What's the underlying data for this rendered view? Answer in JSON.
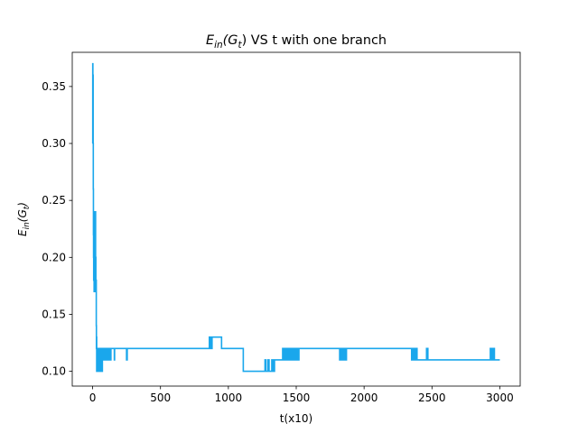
{
  "chart_data": {
    "type": "line",
    "title": {
      "main": "E",
      "sub1": "in",
      "mid": "(G",
      "sub2": "t",
      "close": ")",
      "rest": " VS t with one branch"
    },
    "xlabel": "t(x10)",
    "ylabel": {
      "main": "E",
      "sub1": "in",
      "mid": "(G",
      "sub2": "t",
      "close": ")"
    },
    "xlim": [
      -150,
      3150
    ],
    "ylim": [
      0.087,
      0.38
    ],
    "xticks": [
      0,
      500,
      1000,
      1500,
      2000,
      2500,
      3000
    ],
    "xtick_labels": [
      "0",
      "500",
      "1000",
      "1500",
      "2000",
      "2500",
      "3000"
    ],
    "yticks": [
      0.1,
      0.15,
      0.2,
      0.25,
      0.3,
      0.35
    ],
    "ytick_labels": [
      "0.10",
      "0.15",
      "0.20",
      "0.25",
      "0.30",
      "0.35"
    ],
    "grid": false,
    "series": [
      {
        "color": "#1aa7ec",
        "step": true,
        "x": [
          0,
          1,
          2,
          3,
          4,
          5,
          6,
          7,
          8,
          9,
          10,
          11,
          12,
          13,
          14,
          15,
          16,
          17,
          18,
          19,
          20,
          21,
          22,
          23,
          24,
          25,
          26,
          27,
          28,
          29,
          30,
          31,
          32,
          33,
          35,
          38,
          40,
          42,
          45,
          48,
          50,
          52,
          55,
          58,
          60,
          62,
          65,
          68,
          70,
          72,
          75,
          78,
          80,
          85,
          90,
          95,
          100,
          105,
          110,
          115,
          120,
          125,
          130,
          135,
          140,
          160,
          162,
          175,
          250,
          255,
          270,
          275,
          860,
          870,
          880,
          950,
          1110,
          1270,
          1275,
          1290,
          1300,
          1320,
          1330,
          1340,
          1400,
          1410,
          1420,
          1430,
          1440,
          1450,
          1460,
          1470,
          1480,
          1490,
          1500,
          1510,
          1520,
          1530,
          1820,
          1830,
          1840,
          1850,
          1860,
          1870,
          2350,
          2360,
          2370,
          2380,
          2390,
          2460,
          2470,
          2480,
          2920,
          2930,
          2940,
          2950,
          2960,
          2970,
          3000
        ],
        "y": [
          0.3,
          0.37,
          0.33,
          0.36,
          0.3,
          0.26,
          0.22,
          0.2,
          0.18,
          0.22,
          0.19,
          0.17,
          0.18,
          0.24,
          0.2,
          0.17,
          0.21,
          0.23,
          0.18,
          0.17,
          0.19,
          0.24,
          0.17,
          0.2,
          0.18,
          0.17,
          0.18,
          0.14,
          0.12,
          0.13,
          0.1,
          0.12,
          0.11,
          0.12,
          0.1,
          0.11,
          0.12,
          0.1,
          0.11,
          0.12,
          0.1,
          0.11,
          0.12,
          0.11,
          0.1,
          0.12,
          0.11,
          0.12,
          0.1,
          0.12,
          0.11,
          0.12,
          0.11,
          0.12,
          0.11,
          0.12,
          0.11,
          0.12,
          0.11,
          0.12,
          0.11,
          0.12,
          0.11,
          0.12,
          0.12,
          0.11,
          0.12,
          0.12,
          0.11,
          0.12,
          0.12,
          0.12,
          0.13,
          0.12,
          0.13,
          0.12,
          0.1,
          0.11,
          0.1,
          0.11,
          0.1,
          0.11,
          0.1,
          0.11,
          0.12,
          0.11,
          0.12,
          0.11,
          0.12,
          0.11,
          0.12,
          0.11,
          0.12,
          0.11,
          0.12,
          0.11,
          0.12,
          0.12,
          0.11,
          0.12,
          0.11,
          0.12,
          0.11,
          0.12,
          0.11,
          0.12,
          0.11,
          0.12,
          0.11,
          0.12,
          0.11,
          0.11,
          0.11,
          0.12,
          0.11,
          0.12,
          0.11,
          0.11,
          0.11
        ]
      }
    ]
  }
}
